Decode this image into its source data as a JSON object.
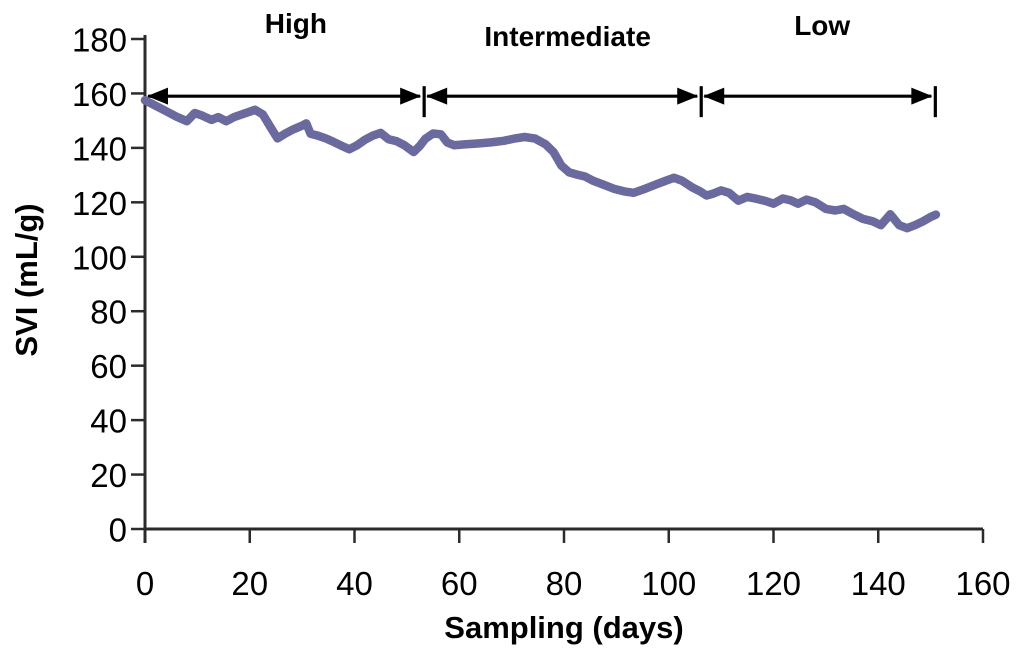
{
  "figure": {
    "background": "#ffffff",
    "line_color": "#6a6a9e",
    "axis_color": "#2b2b2b",
    "text_color": "#000000",
    "arrow_color": "#000000"
  },
  "chart_data": {
    "type": "line",
    "title": "",
    "xlabel": "Sampling (days)",
    "ylabel": "SVI (mL/g)",
    "xlim": [
      0,
      160
    ],
    "ylim": [
      0,
      180
    ],
    "xticks": [
      0,
      20,
      40,
      60,
      80,
      100,
      120,
      140,
      160
    ],
    "yticks": [
      0,
      20,
      40,
      60,
      80,
      100,
      120,
      140,
      160,
      180
    ],
    "grid": false,
    "legend": "none",
    "series": [
      {
        "name": "SVI",
        "color": "#6a6a9e",
        "points": [
          [
            0,
            157.5
          ],
          [
            1.5,
            156
          ],
          [
            3,
            154.5
          ],
          [
            4.5,
            153
          ],
          [
            6,
            151.5
          ],
          [
            8,
            149.8
          ],
          [
            9.5,
            152.8
          ],
          [
            11,
            151.8
          ],
          [
            12.7,
            150.3
          ],
          [
            14,
            151.3
          ],
          [
            15.5,
            149.8
          ],
          [
            17,
            151.3
          ],
          [
            18.5,
            152.3
          ],
          [
            20,
            153.3
          ],
          [
            21,
            154
          ],
          [
            22.5,
            152.3
          ],
          [
            24,
            147.5
          ],
          [
            25.3,
            143.5
          ],
          [
            26.8,
            145.3
          ],
          [
            28.3,
            146.8
          ],
          [
            29.8,
            148
          ],
          [
            30.8,
            149
          ],
          [
            31.6,
            145.2
          ],
          [
            33,
            144.5
          ],
          [
            34.5,
            143.5
          ],
          [
            36,
            142.2
          ],
          [
            37.5,
            140.8
          ],
          [
            39,
            139.5
          ],
          [
            40.5,
            141
          ],
          [
            42,
            143
          ],
          [
            43.5,
            144.5
          ],
          [
            45,
            145.5
          ],
          [
            46.5,
            143.2
          ],
          [
            48,
            142.5
          ],
          [
            49.5,
            141
          ],
          [
            51.3,
            138.5
          ],
          [
            52.5,
            140.8
          ],
          [
            53.5,
            143.3
          ],
          [
            55,
            145.3
          ],
          [
            56.5,
            145
          ],
          [
            57.7,
            142
          ],
          [
            59,
            141
          ],
          [
            61,
            141.3
          ],
          [
            63.5,
            141.6
          ],
          [
            66,
            142
          ],
          [
            68.5,
            142.6
          ],
          [
            70.5,
            143.4
          ],
          [
            72.5,
            144
          ],
          [
            74.5,
            143.4
          ],
          [
            76.5,
            141.3
          ],
          [
            78,
            138.5
          ],
          [
            79.5,
            133.5
          ],
          [
            81,
            131
          ],
          [
            82.5,
            130.2
          ],
          [
            84,
            129.5
          ],
          [
            85.5,
            128
          ],
          [
            87.5,
            126.5
          ],
          [
            89.5,
            125
          ],
          [
            91.5,
            124
          ],
          [
            93.3,
            123.5
          ],
          [
            95.5,
            125
          ],
          [
            97.5,
            126.5
          ],
          [
            99.5,
            128
          ],
          [
            101,
            129
          ],
          [
            102.5,
            128
          ],
          [
            104.5,
            125.5
          ],
          [
            106,
            124
          ],
          [
            107.2,
            122.5
          ],
          [
            108.5,
            123.2
          ],
          [
            110,
            124.4
          ],
          [
            111.5,
            123.5
          ],
          [
            113.3,
            120.6
          ],
          [
            115,
            122
          ],
          [
            116.5,
            121.4
          ],
          [
            118.5,
            120.5
          ],
          [
            120,
            119.5
          ],
          [
            121.8,
            121.4
          ],
          [
            123.3,
            120.7
          ],
          [
            124.7,
            119.5
          ],
          [
            126.3,
            121
          ],
          [
            128,
            120
          ],
          [
            130,
            117.6
          ],
          [
            131.8,
            117
          ],
          [
            133.4,
            117.6
          ],
          [
            135,
            115.9
          ],
          [
            137,
            114
          ],
          [
            139,
            113
          ],
          [
            140.5,
            111.6
          ],
          [
            142.3,
            115.6
          ],
          [
            144,
            111.6
          ],
          [
            145.5,
            110.5
          ],
          [
            147,
            111.6
          ],
          [
            148.5,
            113
          ],
          [
            150,
            114.6
          ],
          [
            151,
            115.5
          ]
        ]
      }
    ],
    "regions": [
      {
        "label": "High",
        "x_start": 0,
        "x_end": 53.3,
        "label_day": 28.8,
        "label_top": 8
      },
      {
        "label": "Intermediate",
        "x_start": 53.3,
        "x_end": 106.2,
        "label_day": 80.7,
        "label_top": 21
      },
      {
        "label": "Low",
        "x_start": 106.2,
        "x_end": 150.9,
        "label_day": 129.3,
        "label_top": 10
      }
    ],
    "arrow_y_value": 159
  }
}
